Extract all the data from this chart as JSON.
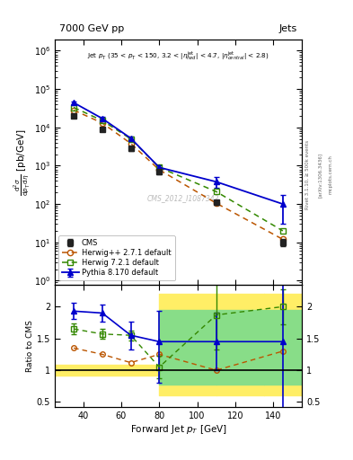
{
  "title_left": "7000 GeV pp",
  "title_right": "Jets",
  "cms_label": "CMS_2012_I1087342",
  "xlim": [
    25,
    155
  ],
  "ylim_main": [
    0.8,
    2000000
  ],
  "ylim_ratio": [
    0.42,
    2.35
  ],
  "cms_x": [
    35,
    50,
    65,
    80,
    110,
    145
  ],
  "cms_y": [
    20000,
    9000,
    2800,
    700,
    110,
    10
  ],
  "cms_yerr_lo": [
    2500,
    1000,
    350,
    90,
    15,
    2
  ],
  "cms_yerr_hi": [
    2500,
    1000,
    350,
    90,
    15,
    2
  ],
  "herwig_pp_x": [
    35,
    50,
    65,
    80,
    110,
    145
  ],
  "herwig_pp_y": [
    28000,
    13000,
    3800,
    780,
    105,
    12
  ],
  "herwig72_x": [
    35,
    50,
    65,
    80,
    110,
    145
  ],
  "herwig72_y": [
    33000,
    15000,
    5000,
    900,
    210,
    20
  ],
  "pythia_x": [
    35,
    50,
    65,
    80,
    110,
    145
  ],
  "pythia_y": [
    44000,
    17000,
    5200,
    900,
    380,
    100
  ],
  "pythia_yerr_lo": [
    4000,
    1800,
    600,
    150,
    120,
    70
  ],
  "pythia_yerr_hi": [
    4000,
    1800,
    600,
    150,
    120,
    70
  ],
  "ratio_herwig_pp_x": [
    35,
    50,
    65,
    80,
    110,
    145
  ],
  "ratio_herwig_pp_y": [
    1.35,
    1.25,
    1.12,
    1.25,
    1.0,
    1.3
  ],
  "ratio_herwig72_x": [
    35,
    50,
    65,
    80,
    110,
    145
  ],
  "ratio_herwig72_y": [
    1.65,
    1.57,
    1.55,
    1.05,
    1.87,
    2.0
  ],
  "ratio_herwig72_yerr_lo": [
    0.08,
    0.08,
    0.08,
    0.18,
    0.55,
    0.28
  ],
  "ratio_herwig72_yerr_hi": [
    0.08,
    0.08,
    0.08,
    0.18,
    0.55,
    0.28
  ],
  "ratio_pythia_x": [
    35,
    50,
    65,
    80,
    110,
    145
  ],
  "ratio_pythia_y": [
    1.93,
    1.9,
    1.55,
    1.45,
    1.45,
    1.45
  ],
  "ratio_pythia_yerr_lo": [
    0.13,
    0.13,
    0.22,
    0.65,
    0.45,
    1.25
  ],
  "ratio_pythia_yerr_hi": [
    0.13,
    0.13,
    0.22,
    0.48,
    0.45,
    0.95
  ],
  "color_cms": "#222222",
  "color_herwig_pp": "#bb5500",
  "color_herwig72": "#338800",
  "color_pythia": "#0000cc",
  "color_yellow": "#ffee66",
  "color_green": "#88dd88",
  "band1_x1": 25,
  "band1_x2": 80,
  "band1_yellow_lo": 0.92,
  "band1_yellow_hi": 1.08,
  "band2_x1": 80,
  "band2_x2": 110,
  "band2_yellow_lo": 0.6,
  "band2_yellow_hi": 2.2,
  "band2_green_lo": 0.78,
  "band2_green_hi": 1.95,
  "band3_x1": 110,
  "band3_x2": 135,
  "band3_yellow_lo": 0.6,
  "band3_yellow_hi": 2.2,
  "band3_green_lo": 0.78,
  "band3_green_hi": 1.95,
  "band4_x1": 135,
  "band4_x2": 155,
  "band4_yellow_lo": 0.6,
  "band4_yellow_hi": 2.2,
  "band4_green_lo": 0.78,
  "band4_green_hi": 1.95
}
